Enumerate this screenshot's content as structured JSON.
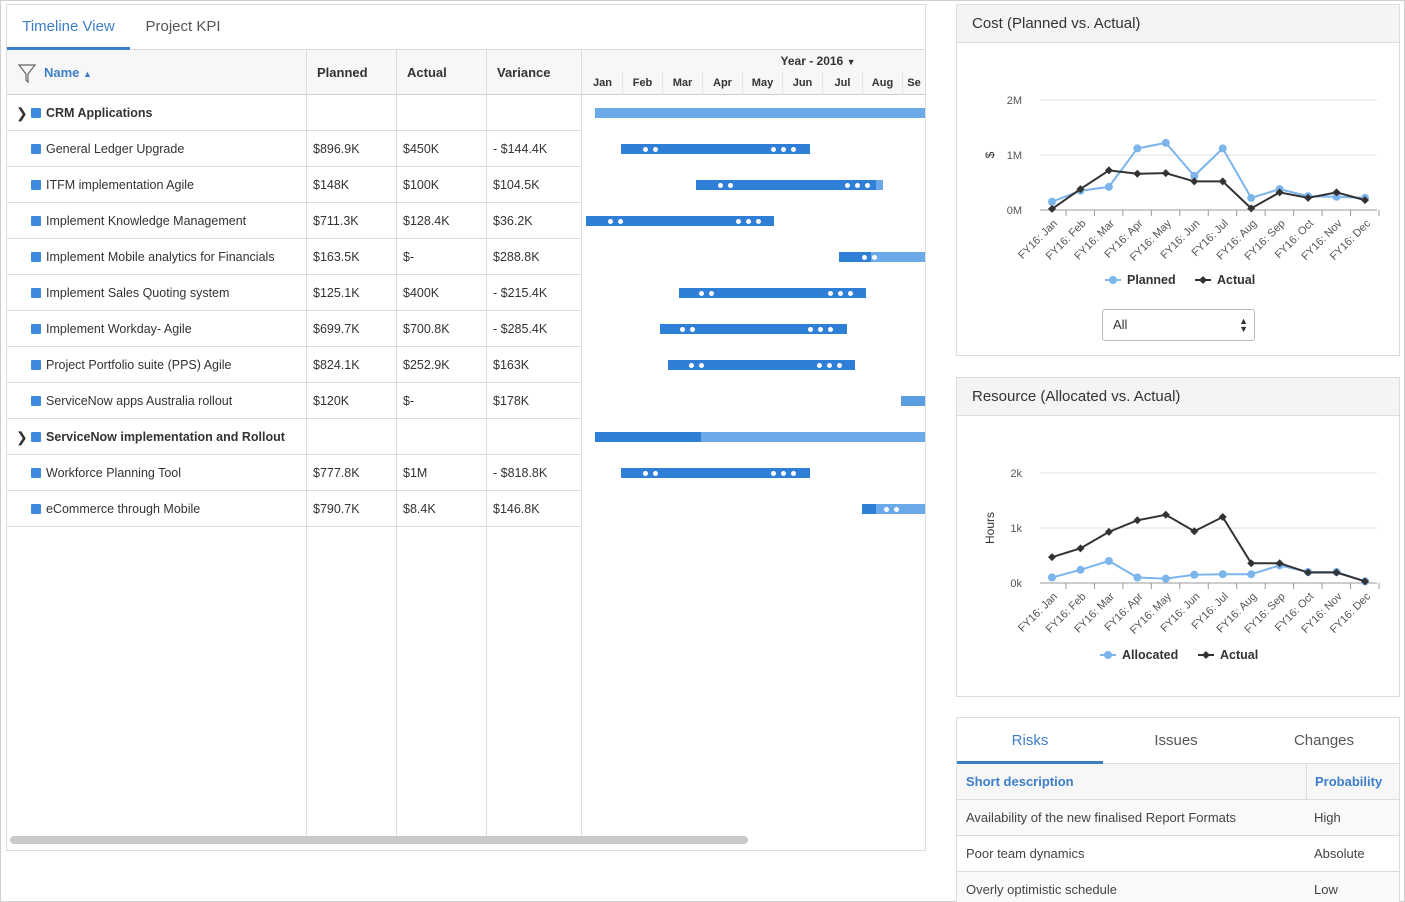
{
  "tabs": [
    {
      "label": "Timeline View",
      "active": true
    },
    {
      "label": "Project KPI",
      "active": false
    }
  ],
  "grid": {
    "columns": {
      "name": "Name",
      "planned": "Planned",
      "actual": "Actual",
      "variance": "Variance"
    },
    "year_label": "Year - 2016",
    "months": [
      "Jan",
      "Feb",
      "Mar",
      "Apr",
      "May",
      "Jun",
      "Jul",
      "Aug",
      "Se"
    ],
    "rows": [
      {
        "name": "CRM Applications",
        "group": true,
        "planned": "",
        "actual": "",
        "variance": ""
      },
      {
        "name": "General Ledger Upgrade",
        "group": false,
        "planned": "$896.9K",
        "actual": "$450K",
        "variance": "- $144.4K"
      },
      {
        "name": "ITFM implementation Agile",
        "group": false,
        "planned": "$148K",
        "actual": "$100K",
        "variance": "$104.5K"
      },
      {
        "name": "Implement Knowledge Management",
        "group": false,
        "planned": "$711.3K",
        "actual": "$128.4K",
        "variance": "$36.2K"
      },
      {
        "name": "Implement Mobile analytics for Financials",
        "group": false,
        "planned": "$163.5K",
        "actual": "$-",
        "variance": "$288.8K"
      },
      {
        "name": "Implement Sales Quoting system",
        "group": false,
        "planned": "$125.1K",
        "actual": "$400K",
        "variance": "- $215.4K"
      },
      {
        "name": "Implement Workday- Agile",
        "group": false,
        "planned": "$699.7K",
        "actual": "$700.8K",
        "variance": "- $285.4K"
      },
      {
        "name": "Project Portfolio suite (PPS) Agile",
        "group": false,
        "planned": "$824.1K",
        "actual": "$252.9K",
        "variance": "$163K"
      },
      {
        "name": "ServiceNow apps Australia rollout",
        "group": false,
        "planned": "$120K",
        "actual": "$-",
        "variance": "$178K"
      },
      {
        "name": "ServiceNow implementation and Rollout",
        "group": true,
        "planned": "",
        "actual": "",
        "variance": ""
      },
      {
        "name": "Workforce Planning Tool",
        "group": false,
        "planned": "$777.8K",
        "actual": "$1M",
        "variance": "- $818.8K"
      },
      {
        "name": "eCommerce through Mobile",
        "group": false,
        "planned": "$790.7K",
        "actual": "$8.4K",
        "variance": "$146.8K"
      }
    ]
  },
  "cost_card": {
    "title": "Cost (Planned vs. Actual)",
    "select_value": "All"
  },
  "resource_card": {
    "title": "Resource (Allocated vs. Actual)"
  },
  "risk_card": {
    "tabs": [
      "Risks",
      "Issues",
      "Changes"
    ],
    "columns": {
      "description": "Short description",
      "probability": "Probability"
    },
    "rows": [
      {
        "description": "Availability of the new finalised Report Formats",
        "probability": "High"
      },
      {
        "description": "Poor team dynamics",
        "probability": "Absolute"
      },
      {
        "description": "Overly optimistic schedule",
        "probability": "Low"
      }
    ]
  },
  "colors": {
    "accent": "#3d7fc7",
    "bar": "#2f7ed8",
    "light_bar": "#6aaae8",
    "planned": "#7cb5ec",
    "actual": "#333333"
  },
  "chart_data": [
    {
      "type": "line",
      "x": [
        "FY16: Jan",
        "FY16: Feb",
        "FY16: Mar",
        "FY16: Apr",
        "FY16: May",
        "FY16: Jun",
        "FY16: Jul",
        "FY16: Aug",
        "FY16: Sep",
        "FY16: Oct",
        "FY16: Nov",
        "FY16: Dec"
      ],
      "series": [
        {
          "name": "Planned",
          "values": [
            0.15,
            0.35,
            0.42,
            1.12,
            1.22,
            0.62,
            1.12,
            0.22,
            0.38,
            0.25,
            0.24,
            0.22
          ]
        },
        {
          "name": "Actual",
          "values": [
            0.02,
            0.38,
            0.72,
            0.66,
            0.67,
            0.52,
            0.52,
            0.03,
            0.32,
            0.22,
            0.32,
            0.18
          ]
        }
      ],
      "ylabel": "$",
      "yticks": [
        "0M",
        "1M",
        "2M"
      ],
      "ylim": [
        0,
        2
      ],
      "legend": "bottom"
    },
    {
      "type": "line",
      "x": [
        "FY16: Jan",
        "FY16: Feb",
        "FY16: Mar",
        "FY16: Apr",
        "FY16: May",
        "FY16: Jun",
        "FY16: Jul",
        "FY16: Aug",
        "FY16: Sep",
        "FY16: Oct",
        "FY16: Nov",
        "FY16: Dec"
      ],
      "series": [
        {
          "name": "Allocated",
          "values": [
            0.1,
            0.24,
            0.4,
            0.1,
            0.08,
            0.15,
            0.16,
            0.16,
            0.32,
            0.2,
            0.2,
            0.03
          ]
        },
        {
          "name": "Actual",
          "values": [
            0.47,
            0.63,
            0.93,
            1.14,
            1.24,
            0.94,
            1.2,
            0.36,
            0.36,
            0.19,
            0.19,
            0.03
          ]
        }
      ],
      "ylabel": "Hours",
      "yticks": [
        "0k",
        "1k",
        "2k"
      ],
      "ylim": [
        0,
        2
      ],
      "legend": "bottom"
    }
  ]
}
